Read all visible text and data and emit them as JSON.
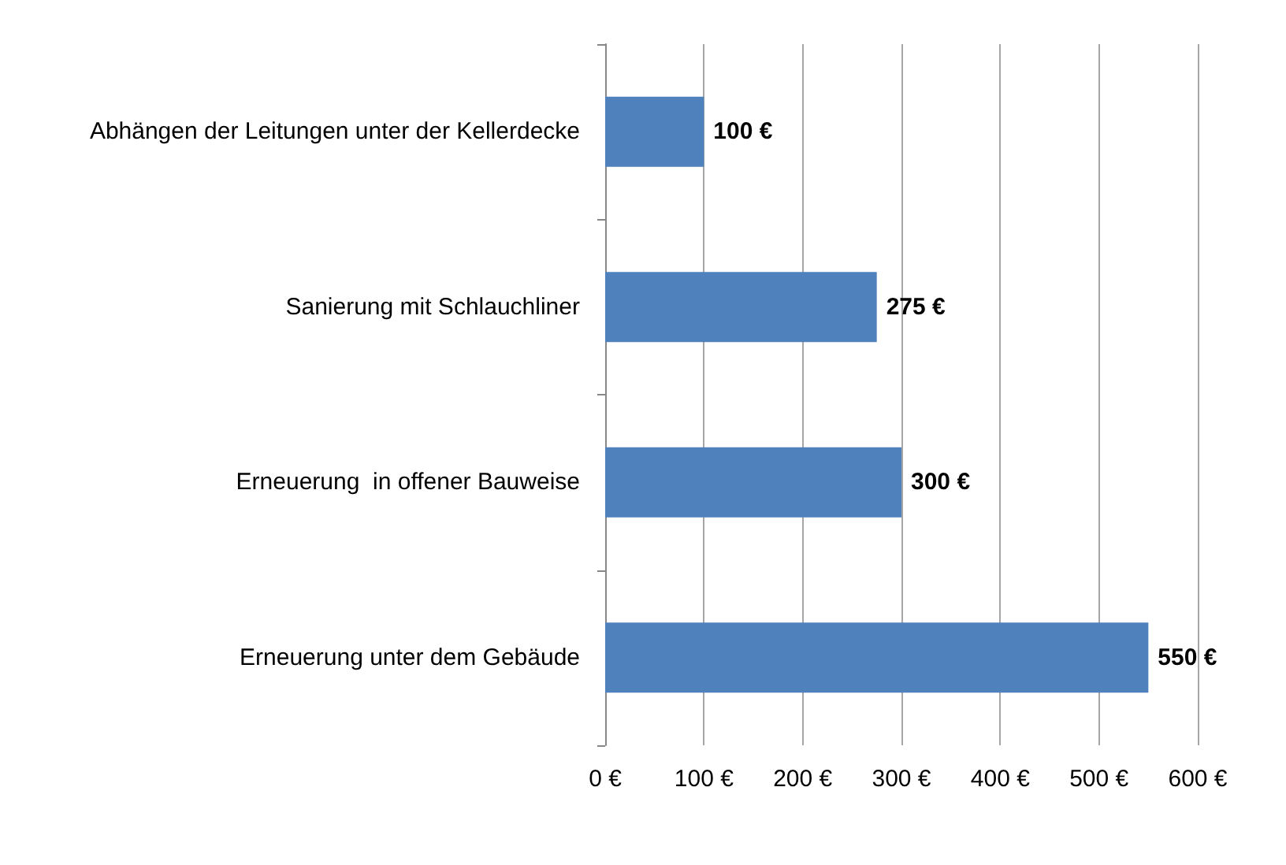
{
  "chart_data": {
    "type": "bar",
    "orientation": "horizontal",
    "categories": [
      "Abhängen der Leitungen unter der Kellerdecke",
      "Sanierung mit Schlauchliner",
      "Erneuerung  in offener Bauweise",
      "Erneuerung unter dem Gebäude"
    ],
    "values": [
      100,
      275,
      300,
      550
    ],
    "color": "#4f81bd",
    "value_labels": [
      "100 €",
      "275 €",
      "300 €",
      "550 €"
    ],
    "xlim": [
      0,
      600
    ],
    "xticks": [
      {
        "value": 0,
        "label": "0 €"
      },
      {
        "value": 100,
        "label": "100 €"
      },
      {
        "value": 200,
        "label": "200 €"
      },
      {
        "value": 300,
        "label": "300 €"
      },
      {
        "value": 400,
        "label": "400 €"
      },
      {
        "value": 500,
        "label": "500 €"
      },
      {
        "value": 600,
        "label": "600 €"
      }
    ],
    "grid": "x"
  }
}
